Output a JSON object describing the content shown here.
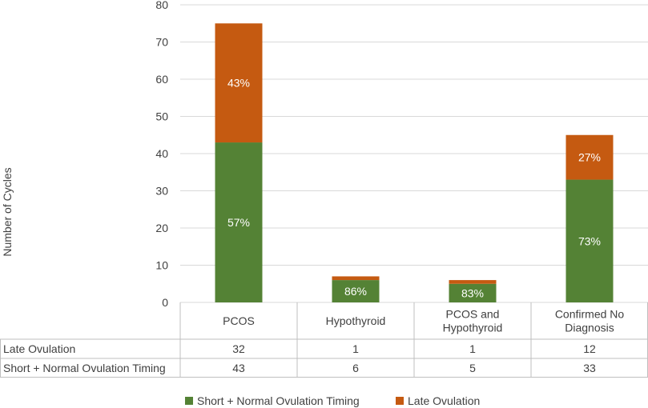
{
  "chart_data": {
    "type": "bar",
    "stacked": true,
    "categories": [
      [
        "PCOS"
      ],
      [
        "Hypothyroid"
      ],
      [
        "PCOS and",
        "Hypothyroid"
      ],
      [
        "Confirmed No",
        "Diagnosis"
      ]
    ],
    "series": [
      {
        "name": "Short + Normal Ovulation Timing",
        "values": [
          43,
          6,
          5,
          33
        ],
        "color": "#548235",
        "labels": [
          "57%",
          "86%",
          "83%",
          "73%"
        ]
      },
      {
        "name": "Late Ovulation",
        "values": [
          32,
          1,
          1,
          12
        ],
        "color": "#c55a11",
        "labels": [
          "43%",
          "",
          "",
          "27%"
        ]
      }
    ],
    "table_rows": [
      {
        "name": "Late Ovulation",
        "values": [
          "32",
          "1",
          "1",
          "12"
        ]
      },
      {
        "name": "Short + Normal Ovulation Timing",
        "values": [
          "43",
          "6",
          "5",
          "33"
        ]
      }
    ],
    "ylabel": "Number of Cycles",
    "ylim": [
      0,
      80
    ],
    "yticks": [
      0,
      10,
      20,
      30,
      40,
      50,
      60,
      70,
      80
    ],
    "grid": true,
    "legend": {
      "position": "bottom",
      "entries": [
        "Short + Normal Ovulation Timing",
        "Late Ovulation"
      ]
    },
    "colors": {
      "grid": "#d9d9d9",
      "table_border": "#bfbfbf",
      "text": "#404040",
      "label_text": "#ffffff"
    }
  }
}
